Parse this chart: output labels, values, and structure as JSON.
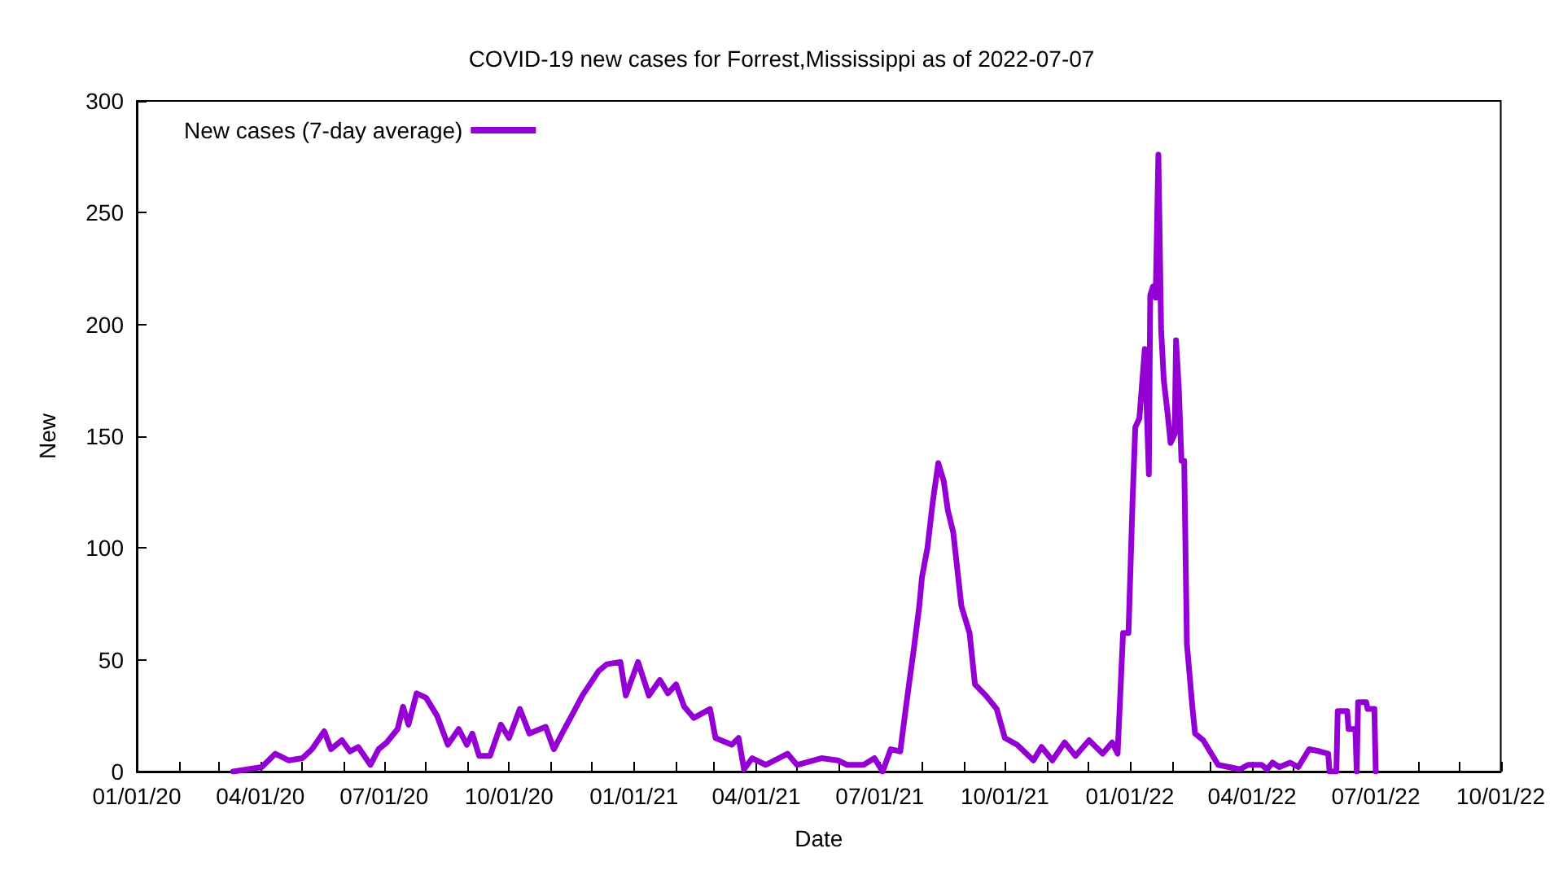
{
  "chart_data": {
    "type": "line",
    "title": "COVID-19 new cases for Forrest,Mississippi as of 2022-07-07",
    "xlabel": "Date",
    "ylabel": "New",
    "x": [
      "2020-03-12",
      "2020-04-02",
      "2020-04-12",
      "2020-04-22",
      "2020-05-02",
      "2020-05-09",
      "2020-05-18",
      "2020-05-23",
      "2020-05-31",
      "2020-06-06",
      "2020-06-12",
      "2020-06-21",
      "2020-06-27",
      "2020-07-03",
      "2020-07-11",
      "2020-07-15",
      "2020-07-19",
      "2020-07-25",
      "2020-08-01",
      "2020-08-09",
      "2020-08-17",
      "2020-08-25",
      "2020-08-31",
      "2020-09-04",
      "2020-09-09",
      "2020-09-17",
      "2020-09-25",
      "2020-10-01",
      "2020-10-09",
      "2020-10-16",
      "2020-10-28",
      "2020-11-03",
      "2020-11-09",
      "2020-11-17",
      "2020-11-24",
      "2020-12-06",
      "2020-12-12",
      "2020-12-22",
      "2020-12-26",
      "2021-01-04",
      "2021-01-12",
      "2021-01-20",
      "2021-01-26",
      "2021-02-01",
      "2021-02-07",
      "2021-02-14",
      "2021-02-26",
      "2021-03-02",
      "2021-03-14",
      "2021-03-19",
      "2021-03-23",
      "2021-03-29",
      "2021-04-08",
      "2021-04-24",
      "2021-05-01",
      "2021-05-19",
      "2021-05-31",
      "2021-06-07",
      "2021-06-19",
      "2021-06-27",
      "2021-07-03",
      "2021-07-09",
      "2021-07-16",
      "2021-07-20",
      "2021-07-26",
      "2021-07-30",
      "2021-08-01",
      "2021-08-05",
      "2021-08-09",
      "2021-08-13",
      "2021-08-17",
      "2021-08-20",
      "2021-08-24",
      "2021-08-30",
      "2021-09-05",
      "2021-09-09",
      "2021-09-17",
      "2021-09-25",
      "2021-10-01",
      "2021-10-10",
      "2021-10-22",
      "2021-10-28",
      "2021-11-05",
      "2021-11-14",
      "2021-11-22",
      "2021-12-02",
      "2021-12-12",
      "2021-12-19",
      "2021-12-23",
      "2021-12-27",
      "2021-12-31",
      "2022-01-03",
      "2022-01-05",
      "2022-01-08",
      "2022-01-12",
      "2022-01-15",
      "2022-01-16",
      "2022-01-18",
      "2022-01-20",
      "2022-01-22",
      "2022-01-24",
      "2022-01-26",
      "2022-01-29",
      "2022-01-31",
      "2022-02-03",
      "2022-02-04",
      "2022-02-06",
      "2022-02-08",
      "2022-02-10",
      "2022-02-12",
      "2022-02-16",
      "2022-02-18",
      "2022-02-24",
      "2022-02-28",
      "2022-03-07",
      "2022-03-23",
      "2022-03-29",
      "2022-04-08",
      "2022-04-12",
      "2022-04-16",
      "2022-04-21",
      "2022-04-29",
      "2022-05-05",
      "2022-05-13",
      "2022-05-21",
      "2022-05-27",
      "2022-05-28",
      "2022-06-02",
      "2022-06-03",
      "2022-06-10",
      "2022-06-11",
      "2022-06-16",
      "2022-06-17",
      "2022-06-18",
      "2022-06-24",
      "2022-06-25",
      "2022-06-30",
      "2022-07-01"
    ],
    "series": [
      {
        "name": "New cases (7-day average)",
        "color": "#9400d3",
        "values": [
          0,
          2,
          8,
          5,
          6,
          10,
          18,
          10,
          14,
          9,
          11,
          3,
          10,
          13,
          19,
          29,
          21,
          35,
          33,
          25,
          12,
          19,
          12,
          17,
          7,
          7,
          21,
          15,
          28,
          17,
          20,
          10,
          17,
          26,
          34,
          45,
          48,
          49,
          34,
          49,
          34,
          41,
          35,
          39,
          29,
          24,
          28,
          15,
          12,
          15,
          1,
          6,
          3,
          8,
          3,
          6,
          5,
          3,
          3,
          6,
          0,
          10,
          9,
          28,
          55,
          74,
          87,
          100,
          121,
          138,
          130,
          117,
          107,
          74,
          62,
          39,
          34,
          28,
          15,
          12,
          5,
          11,
          5,
          13,
          7,
          14,
          8,
          13,
          8,
          62,
          62,
          121,
          154,
          158,
          189,
          133,
          213,
          217,
          212,
          276,
          198,
          175,
          159,
          147,
          151,
          193,
          172,
          139,
          139,
          57,
          29,
          17,
          14,
          10,
          3,
          1,
          3,
          3,
          1,
          4,
          2,
          4,
          2,
          10,
          9,
          8,
          0,
          0,
          27,
          27,
          19,
          19,
          0,
          31,
          31,
          28,
          28,
          0
        ]
      }
    ],
    "xlim": [
      "2020-01-01",
      "2022-10-01"
    ],
    "xticks": [
      {
        "value": "2020-01-01",
        "label": "01/01/20"
      },
      {
        "value": "2020-02-01",
        "label": null
      },
      {
        "value": "2020-03-01",
        "label": null
      },
      {
        "value": "2020-04-01",
        "label": "04/01/20"
      },
      {
        "value": "2020-05-01",
        "label": null
      },
      {
        "value": "2020-06-01",
        "label": null
      },
      {
        "value": "2020-07-01",
        "label": "07/01/20"
      },
      {
        "value": "2020-08-01",
        "label": null
      },
      {
        "value": "2020-09-01",
        "label": null
      },
      {
        "value": "2020-10-01",
        "label": "10/01/20"
      },
      {
        "value": "2020-11-01",
        "label": null
      },
      {
        "value": "2020-12-01",
        "label": null
      },
      {
        "value": "2021-01-01",
        "label": "01/01/21"
      },
      {
        "value": "2021-02-01",
        "label": null
      },
      {
        "value": "2021-03-01",
        "label": null
      },
      {
        "value": "2021-04-01",
        "label": "04/01/21"
      },
      {
        "value": "2021-05-01",
        "label": null
      },
      {
        "value": "2021-06-01",
        "label": null
      },
      {
        "value": "2021-07-01",
        "label": "07/01/21"
      },
      {
        "value": "2021-08-01",
        "label": null
      },
      {
        "value": "2021-09-01",
        "label": null
      },
      {
        "value": "2021-10-01",
        "label": "10/01/21"
      },
      {
        "value": "2021-11-01",
        "label": null
      },
      {
        "value": "2021-12-01",
        "label": null
      },
      {
        "value": "2022-01-01",
        "label": "01/01/22"
      },
      {
        "value": "2022-02-01",
        "label": null
      },
      {
        "value": "2022-03-01",
        "label": null
      },
      {
        "value": "2022-04-01",
        "label": "04/01/22"
      },
      {
        "value": "2022-05-01",
        "label": null
      },
      {
        "value": "2022-06-01",
        "label": null
      },
      {
        "value": "2022-07-01",
        "label": "07/01/22"
      },
      {
        "value": "2022-08-01",
        "label": null
      },
      {
        "value": "2022-09-01",
        "label": null
      },
      {
        "value": "2022-10-01",
        "label": "10/01/22"
      }
    ],
    "ylim": [
      0,
      300
    ],
    "yticks": [
      0,
      50,
      100,
      150,
      200,
      250,
      300
    ],
    "grid": false,
    "legend": "top left",
    "marker": "none",
    "line_style": "solid"
  }
}
